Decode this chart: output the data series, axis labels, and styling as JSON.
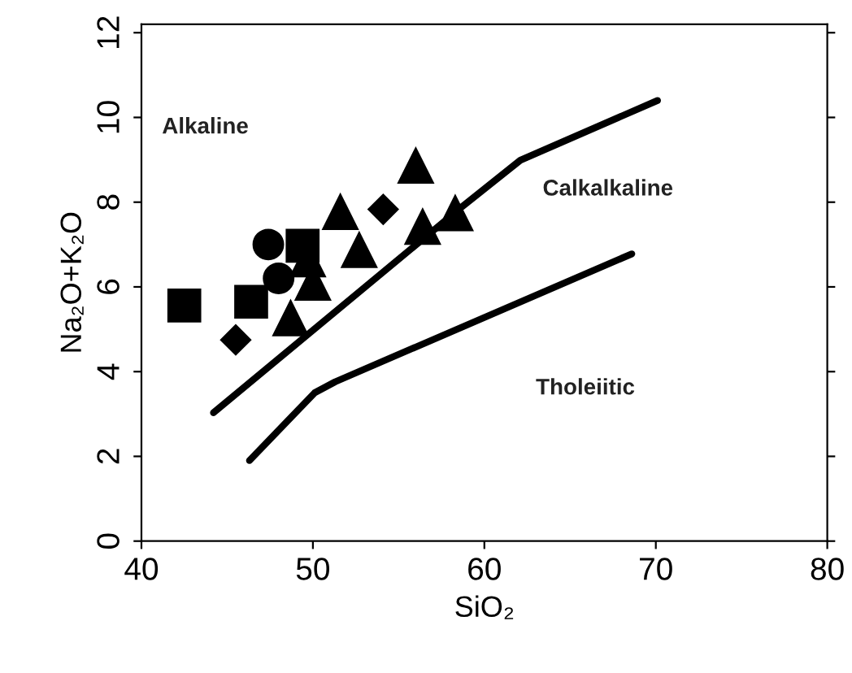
{
  "chart_data": {
    "type": "scatter",
    "xlabel": "SiO₂",
    "ylabel": "Na₂O+K₂O",
    "xlim": [
      40,
      80
    ],
    "ylim": [
      0,
      12.2
    ],
    "xticks": [
      40,
      50,
      60,
      70,
      80
    ],
    "yticks": [
      0,
      2,
      4,
      6,
      8,
      10,
      12
    ],
    "grid": false,
    "legend": false,
    "series": [
      {
        "color": "#000000",
        "marker": "square",
        "x": [
          42.5,
          46.4,
          49.4
        ],
        "values": [
          5.56,
          5.65,
          6.97
        ]
      },
      {
        "color": "#000000",
        "marker": "circle",
        "x": [
          47.4,
          48.0
        ],
        "values": [
          7.0,
          6.2
        ]
      },
      {
        "color": "#000000",
        "marker": "diamond",
        "x": [
          45.5,
          54.1
        ],
        "values": [
          4.75,
          7.83
        ]
      },
      {
        "color": "#000000",
        "marker": "triangle",
        "x": [
          48.7,
          49.7,
          50.0,
          51.6,
          52.7,
          56.0,
          56.4,
          58.3
        ],
        "values": [
          5.26,
          6.65,
          6.1,
          7.77,
          6.87,
          8.86,
          7.42,
          7.74
        ]
      },
      {
        "type": "line",
        "color": "#000000",
        "x": [
          44.2,
          58.6,
          62.1,
          70.1
        ],
        "values": [
          3.03,
          7.86,
          8.99,
          10.4
        ]
      },
      {
        "type": "line",
        "color": "#000000",
        "x": [
          46.3,
          50.1,
          51.3,
          68.6
        ],
        "values": [
          1.9,
          3.5,
          3.76,
          6.78
        ]
      }
    ],
    "annotations": [
      "Alkaline",
      "Calkalkaline",
      "Tholeiitic"
    ]
  }
}
